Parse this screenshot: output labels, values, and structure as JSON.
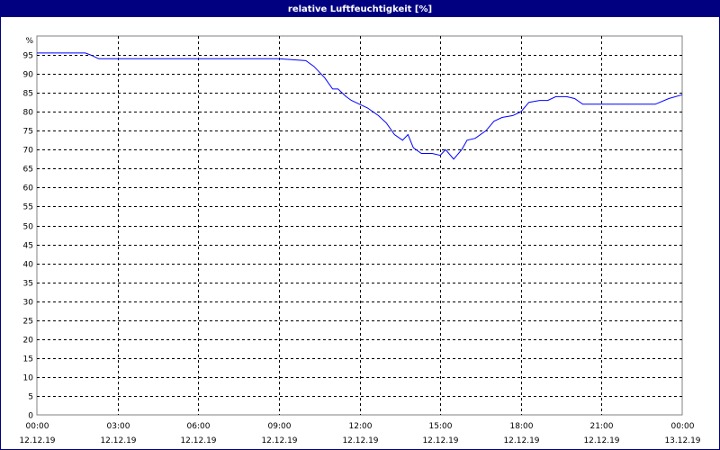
{
  "window": {
    "title": "relative Luftfeuchtigkeit [%]"
  },
  "colors": {
    "title_bar": "#000080",
    "series_line": "#0000ff",
    "grid": "#000000",
    "plot_border": "#808080"
  },
  "chart_data": {
    "type": "line",
    "title": "relative Luftfeuchtigkeit [%]",
    "ylabel": "%",
    "xlabel": "",
    "ylim": [
      0,
      100
    ],
    "xlim": [
      0,
      24
    ],
    "grid": true,
    "legend": "none",
    "y_ticks": [
      0,
      5,
      10,
      15,
      20,
      25,
      30,
      35,
      40,
      45,
      50,
      55,
      60,
      65,
      70,
      75,
      80,
      85,
      90,
      95
    ],
    "x_ticks": [
      {
        "time": "00:00",
        "date": "12.12.19"
      },
      {
        "time": "03:00",
        "date": "12.12.19"
      },
      {
        "time": "06:00",
        "date": "12.12.19"
      },
      {
        "time": "09:00",
        "date": "12.12.19"
      },
      {
        "time": "12:00",
        "date": "12.12.19"
      },
      {
        "time": "15:00",
        "date": "12.12.19"
      },
      {
        "time": "18:00",
        "date": "12.12.19"
      },
      {
        "time": "21:00",
        "date": "12.12.19"
      },
      {
        "time": "00:00",
        "date": "13.12.19"
      }
    ],
    "series": [
      {
        "x": [
          0,
          1.8,
          2.0,
          2.3,
          3.0,
          6.0,
          9.0,
          10.0,
          10.3,
          10.7,
          11.0,
          11.2,
          11.5,
          11.7,
          12.0,
          12.3,
          12.7,
          13.0,
          13.3,
          13.6,
          13.8,
          14.0,
          14.3,
          14.7,
          15.0,
          15.2,
          15.5,
          15.8,
          16.0,
          16.3,
          16.7,
          17.0,
          17.3,
          17.7,
          18.0,
          18.3,
          18.7,
          19.0,
          19.3,
          19.7,
          20.0,
          20.3,
          21.0,
          22.0,
          23.0,
          23.5,
          24.0
        ],
        "y": [
          95.5,
          95.5,
          95,
          94,
          94,
          94,
          94,
          93.5,
          92,
          89,
          86,
          86,
          84,
          83,
          82,
          81,
          79,
          77,
          74,
          72.5,
          74,
          70.5,
          69,
          69,
          68.5,
          70,
          67.5,
          70,
          72.5,
          73,
          75,
          77.5,
          78.5,
          79,
          80,
          82.5,
          83,
          83,
          84,
          84,
          83.5,
          82,
          82,
          82,
          82,
          83.5,
          84.5
        ]
      }
    ]
  }
}
